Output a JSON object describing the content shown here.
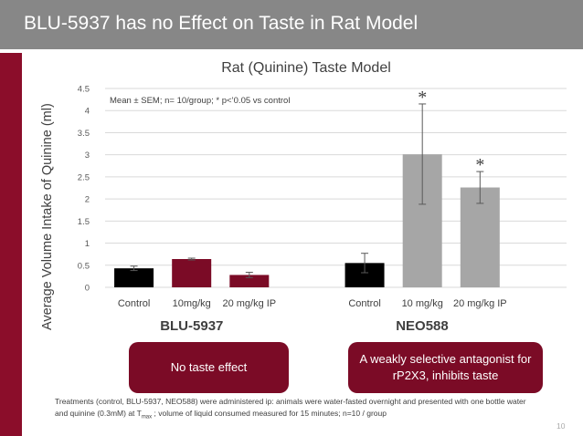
{
  "slide": {
    "title": "BLU-5937 has no Effect on Taste in Rat Model",
    "page_number": "10"
  },
  "chart_data": {
    "type": "bar",
    "title": "Rat (Quinine) Taste Model",
    "ylabel": "Average Volume Intake of Quinine  (ml)",
    "xlabel": "",
    "ylim": [
      0,
      4.5
    ],
    "yticks": [
      "0",
      "0.5",
      "1",
      "1.5",
      "2",
      "2.5",
      "3",
      "3.5",
      "4",
      "4.5"
    ],
    "annotation": "Mean ± SEM; n= 10/group; * p<’0.05 vs control",
    "groups": [
      {
        "name": "BLU-5937",
        "bars": [
          {
            "label": "Control",
            "value": 0.43,
            "err_low": 0.38,
            "err_high": 0.48,
            "color": "#000000",
            "marker": ""
          },
          {
            "label": "10mg/kg",
            "value": 0.64,
            "err_low": 0.62,
            "err_high": 0.66,
            "color": "#7b0b26",
            "marker": ""
          },
          {
            "label": "20 mg/kg IP",
            "value": 0.28,
            "err_low": 0.22,
            "err_high": 0.34,
            "color": "#7b0b26",
            "marker": ""
          }
        ]
      },
      {
        "name": "NEO588",
        "bars": [
          {
            "label": "Control",
            "value": 0.55,
            "err_low": 0.33,
            "err_high": 0.77,
            "color": "#000000",
            "marker": ""
          },
          {
            "label": "10 mg/kg",
            "value": 3.01,
            "err_low": 1.88,
            "err_high": 4.15,
            "color": "#a6a6a6",
            "marker": "*"
          },
          {
            "label": "20 mg/kg IP",
            "value": 2.26,
            "err_low": 1.9,
            "err_high": 2.62,
            "color": "#a6a6a6",
            "marker": "*"
          }
        ]
      }
    ]
  },
  "callouts": {
    "left": "No taste effect",
    "right": "A weakly selective antagonist for rP2X3, inhibits taste"
  },
  "footnote": {
    "part1": "Treatments (control, BLU-5937, NEO588) were administered ip: animals were water-fasted overnight and presented with one bottle water and quinine (0.3mM) at T",
    "sub": "max",
    "part2": " ; volume of liquid consumed measured for 15 minutes;  n=10 / group"
  }
}
